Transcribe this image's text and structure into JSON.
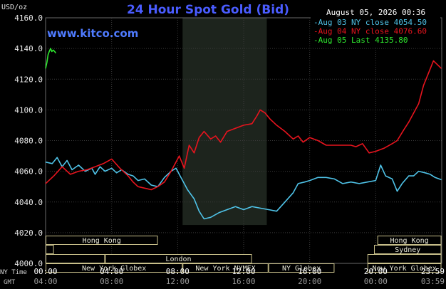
{
  "chart_data": {
    "type": "line",
    "title": "24 Hour Spot Gold (Bid)",
    "ylabel": "USD/oz",
    "timestamp": "August 05, 2026 00:36",
    "watermark": "www.kitco.com",
    "ylim": [
      4000,
      4160
    ],
    "xlim": [
      0,
      24
    ],
    "y_ticks": [
      "4160.0",
      "4140.0",
      "4120.0",
      "4100.0",
      "4080.0",
      "4060.0",
      "4040.0",
      "4020.0",
      "4000.0"
    ],
    "x_ticks_ny": [
      "00:00",
      "04:00",
      "08:00",
      "12:00",
      "16:00",
      "20:00",
      "23:59"
    ],
    "x_ticks_gmt": [
      "04:00",
      "08:00",
      "12:00",
      "16:00",
      "20:00",
      "00:00",
      "03:59"
    ],
    "x_axis_label_ny": "NY Time",
    "x_axis_label_gmt": "GMT",
    "session_shade": [
      8.3,
      13.4
    ],
    "grid": true,
    "legend_position": "top-right",
    "series": [
      {
        "name": "Aug 03 NY close 4054.50",
        "color": "#4fc3e8",
        "x": [
          0,
          0.4,
          0.7,
          1.0,
          1.3,
          1.6,
          2.0,
          2.4,
          2.8,
          3.0,
          3.3,
          3.6,
          4.0,
          4.3,
          4.6,
          5.0,
          5.3,
          5.6,
          6.0,
          6.4,
          6.8,
          7.2,
          7.6,
          7.9,
          8.1,
          8.3,
          8.6,
          9.0,
          9.3,
          9.6,
          10.0,
          10.5,
          11.0,
          11.5,
          12.0,
          12.5,
          13.0,
          13.5,
          14.0,
          14.5,
          15.0,
          15.3,
          15.7,
          16.0,
          16.5,
          17.0,
          17.5,
          18.0,
          18.5,
          19.0,
          19.5,
          20.0,
          20.3,
          20.6,
          21.0,
          21.3,
          21.6,
          22.0,
          22.3,
          22.6,
          23.0,
          23.3,
          23.6,
          23.98
        ],
        "y": [
          4066,
          4065,
          4069,
          4063,
          4067,
          4061,
          4064,
          4060,
          4062,
          4058,
          4063,
          4060,
          4062,
          4059,
          4061,
          4058,
          4057,
          4054,
          4055,
          4051,
          4050,
          4056,
          4060,
          4062,
          4058,
          4054,
          4048,
          4042,
          4034,
          4029,
          4030,
          4033,
          4035,
          4037,
          4035,
          4037,
          4036,
          4035,
          4034,
          4040,
          4046,
          4052,
          4053,
          4054,
          4056,
          4056,
          4055,
          4052,
          4053,
          4052,
          4053,
          4054,
          4064,
          4057,
          4055,
          4047,
          4052,
          4057,
          4057,
          4060,
          4059,
          4058,
          4056,
          4054.5
        ]
      },
      {
        "name": "Aug 04 NY close 4076.60",
        "color": "#e8141e",
        "x": [
          0,
          0.5,
          1.0,
          1.5,
          2.0,
          2.5,
          3.0,
          3.5,
          4.0,
          4.5,
          5.0,
          5.3,
          5.6,
          6.0,
          6.4,
          6.8,
          7.2,
          7.6,
          7.9,
          8.1,
          8.4,
          8.7,
          9.0,
          9.3,
          9.6,
          10.0,
          10.3,
          10.6,
          11.0,
          11.5,
          12.0,
          12.5,
          12.8,
          13.0,
          13.3,
          13.6,
          14.0,
          14.5,
          15.0,
          15.3,
          15.6,
          16.0,
          16.5,
          17.0,
          17.5,
          18.0,
          18.5,
          18.8,
          19.2,
          19.6,
          20.0,
          20.5,
          21.0,
          21.3,
          21.7,
          22.0,
          22.3,
          22.6,
          22.9,
          23.2,
          23.5,
          23.98
        ],
        "y": [
          4052,
          4057,
          4063,
          4058,
          4060,
          4061,
          4063,
          4065,
          4068,
          4062,
          4057,
          4053,
          4050,
          4049,
          4048,
          4050,
          4053,
          4060,
          4066,
          4070,
          4062,
          4077,
          4072,
          4082,
          4086,
          4081,
          4083,
          4079,
          4086,
          4088,
          4090,
          4091,
          4096,
          4100,
          4098,
          4094,
          4090,
          4086,
          4081,
          4083,
          4079,
          4082,
          4080,
          4077,
          4077,
          4077,
          4077,
          4076,
          4078,
          4072,
          4073,
          4075,
          4078,
          4080,
          4087,
          4092,
          4098,
          4104,
          4116,
          4124,
          4132,
          4127
        ]
      },
      {
        "name": "Aug 05 Last 4135.80",
        "color": "#2ee82e",
        "x": [
          0,
          0.08,
          0.15,
          0.22,
          0.3,
          0.38,
          0.46,
          0.55,
          0.62
        ],
        "y": [
          4127,
          4131,
          4136,
          4138,
          4140,
          4138,
          4139,
          4138,
          4137
        ]
      }
    ],
    "sessions": [
      {
        "label": "Hong Kong",
        "row": 0,
        "from": 0,
        "to": 6.8
      },
      {
        "label": "Hong Kong",
        "row": 0,
        "from": 20.1,
        "to": 23.98
      },
      {
        "label": "",
        "row": 1,
        "from": 0,
        "to": 0.5
      },
      {
        "label": "Sydney",
        "row": 1,
        "from": 19.9,
        "to": 23.98
      },
      {
        "label": "",
        "row": 2,
        "from": 0,
        "to": 3.6
      },
      {
        "label": "London",
        "row": 2,
        "from": 3.6,
        "to": 12.5
      },
      {
        "label": "",
        "row": 2,
        "from": 19.5,
        "to": 23.98
      },
      {
        "label": "New York Globex",
        "row": 3,
        "from": 0,
        "to": 8.3
      },
      {
        "label": "New York NYMEX",
        "row": 3,
        "from": 8.3,
        "to": 13.5
      },
      {
        "label": "NY Globex",
        "row": 3,
        "from": 13.5,
        "to": 17.5
      },
      {
        "label": "New York Globex",
        "row": 3,
        "from": 19.5,
        "to": 23.98
      }
    ]
  }
}
